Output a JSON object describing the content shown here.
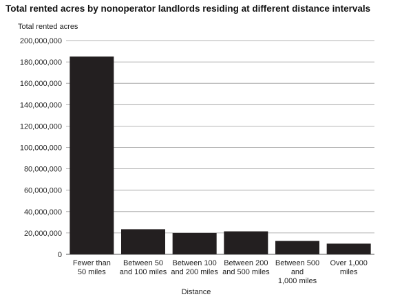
{
  "chart_data": {
    "type": "bar",
    "title": "Total rented acres by nonoperator landlords residing at different distance intervals",
    "ylabel": "Total rented acres",
    "xlabel": "Distance",
    "ylim": [
      0,
      200000000
    ],
    "yticks": [
      0,
      20000000,
      40000000,
      60000000,
      80000000,
      100000000,
      120000000,
      140000000,
      160000000,
      180000000,
      200000000
    ],
    "ytick_labels": [
      "0",
      "20,000,000",
      "40,000,000",
      "60,000,000",
      "80,000,000",
      "100,000,000",
      "120,000,000",
      "140,000,000",
      "160,000,000",
      "180,000,000",
      "200,000,000"
    ],
    "grid": true,
    "bar_color": "#231f20",
    "categories": [
      [
        "Fewer than",
        "50 miles"
      ],
      [
        "Between 50",
        "and 100 miles"
      ],
      [
        "Between 100",
        "and 200 miles"
      ],
      [
        "Between 200",
        "and 500 miles"
      ],
      [
        "Between 500",
        "and",
        "1,000 miles"
      ],
      [
        "Over 1,000",
        "miles"
      ]
    ],
    "values": [
      185000000,
      23500000,
      20000000,
      21500000,
      12500000,
      10000000
    ]
  }
}
